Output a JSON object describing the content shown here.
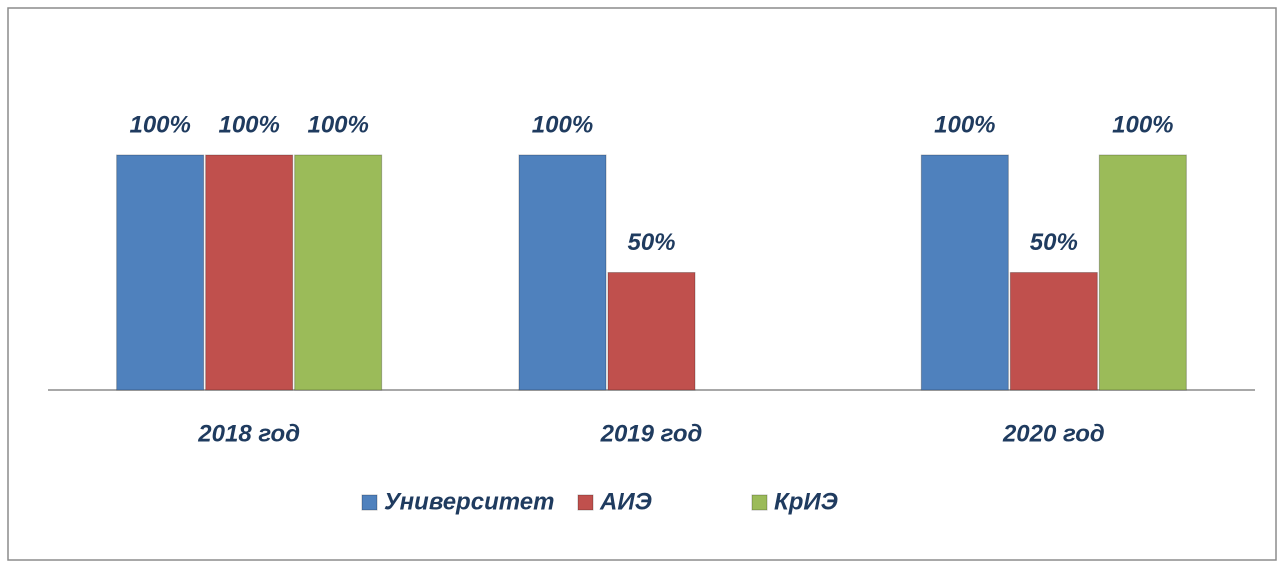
{
  "chart_data": {
    "type": "bar",
    "categories": [
      "2018 год",
      "2019 год",
      "2020 год"
    ],
    "series": [
      {
        "name": "Университет",
        "color": "#4f81bd",
        "values": [
          100,
          100,
          100
        ],
        "value_labels": [
          "100%",
          "100%",
          "100%"
        ]
      },
      {
        "name": "АИЭ",
        "color": "#c0504d",
        "values": [
          100,
          50,
          50
        ],
        "value_labels": [
          "100%",
          "50%",
          "50%"
        ]
      },
      {
        "name": "КрИЭ",
        "color": "#9bbb59",
        "values": [
          100,
          null,
          100
        ],
        "value_labels": [
          "100%",
          null,
          "100%"
        ]
      }
    ],
    "ylim": [
      0,
      100
    ],
    "grid": false,
    "legend": "bottom"
  }
}
